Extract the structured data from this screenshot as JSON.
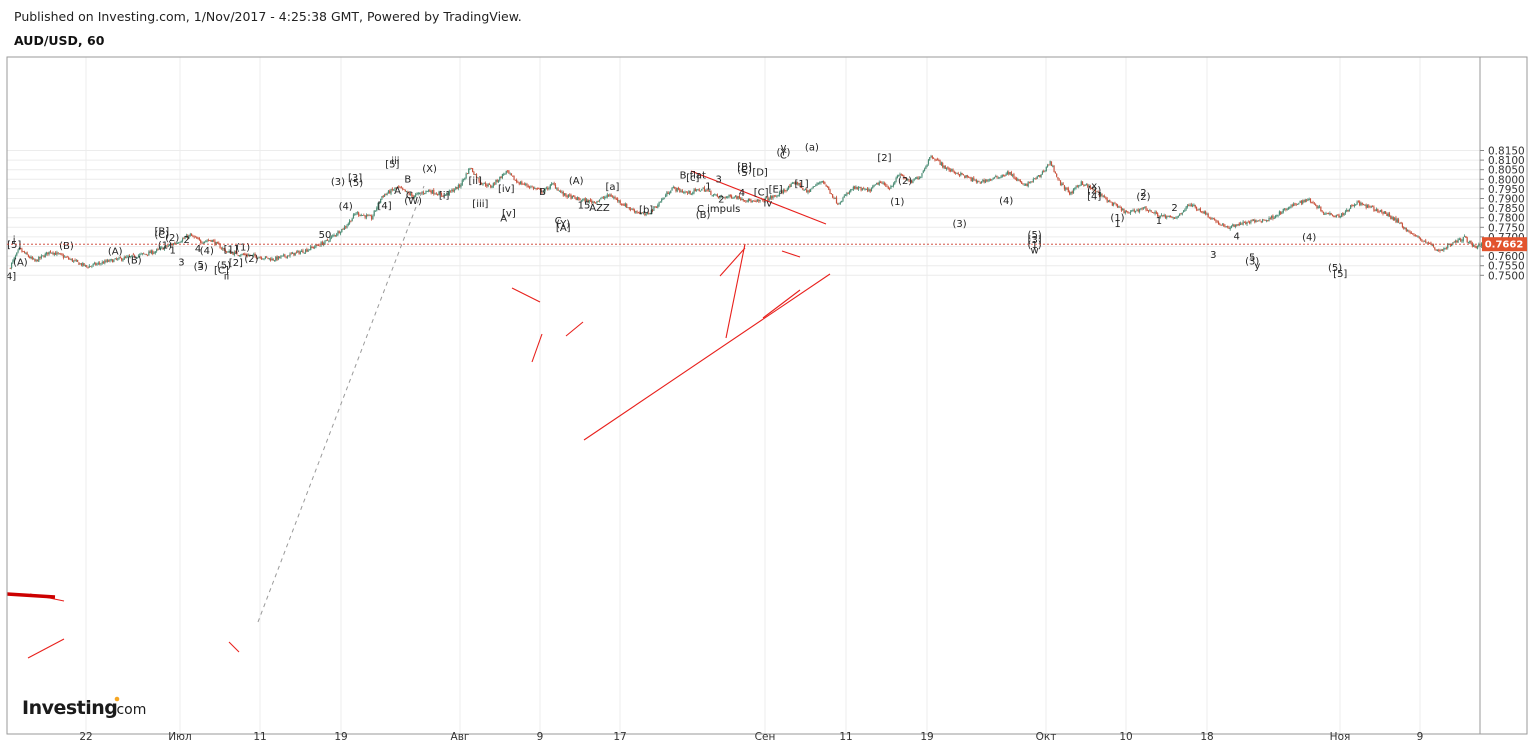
{
  "header": {
    "published": "Published on Investing.com, 1/Nov/2017 - 4:25:38 GMT, Powered by TradingView.",
    "symbol": "AUD/USD, 60"
  },
  "watermark": "Investing.com",
  "colors": {
    "up": "#4a8c74",
    "down": "#c8523c",
    "wave_line": "#e8201c",
    "pivot_line": "#cc0000",
    "magenta": "#e020d0",
    "orange": "#f0a020"
  },
  "chart_data": {
    "type": "candlestick",
    "title": "AUD/USD, 60",
    "y_ticks": [
      "0.8150",
      "0.8100",
      "0.8050",
      "0.8000",
      "0.7950",
      "0.7900",
      "0.7850",
      "0.7800",
      "0.7750",
      "0.7700",
      "0.7650",
      "0.7600",
      "0.7550",
      "0.7500"
    ],
    "ylim": [
      0.7497,
      0.8198
    ],
    "x_ticks": [
      "22",
      "Июл",
      "11",
      "19",
      "Авг",
      "9",
      "17",
      "Сен",
      "11",
      "19",
      "Окт",
      "10",
      "18",
      "Ноя",
      "9"
    ],
    "current_price": "0.7662",
    "price_path": [
      {
        "t": 0,
        "p": 0.7535
      },
      {
        "t": 2,
        "p": 0.7635
      },
      {
        "t": 5,
        "p": 0.7572
      },
      {
        "t": 8,
        "p": 0.7625
      },
      {
        "t": 11,
        "p": 0.7592
      },
      {
        "t": 15,
        "p": 0.7545
      },
      {
        "t": 19,
        "p": 0.7572
      },
      {
        "t": 24,
        "p": 0.7598
      },
      {
        "t": 28,
        "p": 0.7622
      },
      {
        "t": 32,
        "p": 0.7668
      },
      {
        "t": 35,
        "p": 0.7708
      },
      {
        "t": 37,
        "p": 0.7676
      },
      {
        "t": 39,
        "p": 0.7685
      },
      {
        "t": 42,
        "p": 0.7622
      },
      {
        "t": 45,
        "p": 0.7608
      },
      {
        "t": 48,
        "p": 0.7598
      },
      {
        "t": 51,
        "p": 0.7583
      },
      {
        "t": 54,
        "p": 0.7605
      },
      {
        "t": 57,
        "p": 0.7628
      },
      {
        "t": 61,
        "p": 0.7672
      },
      {
        "t": 65,
        "p": 0.7755
      },
      {
        "t": 67,
        "p": 0.7825
      },
      {
        "t": 70,
        "p": 0.7798
      },
      {
        "t": 72,
        "p": 0.7912
      },
      {
        "t": 75,
        "p": 0.7958
      },
      {
        "t": 78,
        "p": 0.7912
      },
      {
        "t": 81,
        "p": 0.7942
      },
      {
        "t": 84,
        "p": 0.7915
      },
      {
        "t": 87,
        "p": 0.7965
      },
      {
        "t": 89,
        "p": 0.8062
      },
      {
        "t": 91,
        "p": 0.7985
      },
      {
        "t": 93,
        "p": 0.7962
      },
      {
        "t": 96,
        "p": 0.804
      },
      {
        "t": 98,
        "p": 0.7988
      },
      {
        "t": 101,
        "p": 0.7958
      },
      {
        "t": 103,
        "p": 0.7935
      },
      {
        "t": 105,
        "p": 0.7975
      },
      {
        "t": 107,
        "p": 0.792
      },
      {
        "t": 110,
        "p": 0.7895
      },
      {
        "t": 113,
        "p": 0.7882
      },
      {
        "t": 116,
        "p": 0.7918
      },
      {
        "t": 120,
        "p": 0.7845
      },
      {
        "t": 123,
        "p": 0.7812
      },
      {
        "t": 125,
        "p": 0.7862
      },
      {
        "t": 128,
        "p": 0.7955
      },
      {
        "t": 131,
        "p": 0.7928
      },
      {
        "t": 134,
        "p": 0.795
      },
      {
        "t": 137,
        "p": 0.7905
      },
      {
        "t": 140,
        "p": 0.7912
      },
      {
        "t": 144,
        "p": 0.788
      },
      {
        "t": 148,
        "p": 0.7912
      },
      {
        "t": 152,
        "p": 0.7985
      },
      {
        "t": 154,
        "p": 0.7932
      },
      {
        "t": 157,
        "p": 0.7995
      },
      {
        "t": 160,
        "p": 0.7875
      },
      {
        "t": 163,
        "p": 0.7955
      },
      {
        "t": 166,
        "p": 0.794
      },
      {
        "t": 168,
        "p": 0.7985
      },
      {
        "t": 170,
        "p": 0.7955
      },
      {
        "t": 172,
        "p": 0.8028
      },
      {
        "t": 174,
        "p": 0.7982
      },
      {
        "t": 176,
        "p": 0.802
      },
      {
        "t": 178,
        "p": 0.8125
      },
      {
        "t": 181,
        "p": 0.8055
      },
      {
        "t": 184,
        "p": 0.8022
      },
      {
        "t": 187,
        "p": 0.7985
      },
      {
        "t": 190,
        "p": 0.8002
      },
      {
        "t": 193,
        "p": 0.8035
      },
      {
        "t": 196,
        "p": 0.7965
      },
      {
        "t": 199,
        "p": 0.8018
      },
      {
        "t": 201,
        "p": 0.809
      },
      {
        "t": 203,
        "p": 0.7975
      },
      {
        "t": 205,
        "p": 0.7925
      },
      {
        "t": 207,
        "p": 0.7985
      },
      {
        "t": 210,
        "p": 0.7932
      },
      {
        "t": 213,
        "p": 0.7872
      },
      {
        "t": 216,
        "p": 0.7822
      },
      {
        "t": 219,
        "p": 0.7852
      },
      {
        "t": 222,
        "p": 0.7812
      },
      {
        "t": 225,
        "p": 0.7795
      },
      {
        "t": 228,
        "p": 0.787
      },
      {
        "t": 230,
        "p": 0.784
      },
      {
        "t": 233,
        "p": 0.7782
      },
      {
        "t": 235,
        "p": 0.7745
      },
      {
        "t": 237,
        "p": 0.7765
      },
      {
        "t": 240,
        "p": 0.778
      },
      {
        "t": 243,
        "p": 0.779
      },
      {
        "t": 246,
        "p": 0.7835
      },
      {
        "t": 249,
        "p": 0.788
      },
      {
        "t": 251,
        "p": 0.7895
      },
      {
        "t": 254,
        "p": 0.7825
      },
      {
        "t": 257,
        "p": 0.781
      },
      {
        "t": 260,
        "p": 0.788
      },
      {
        "t": 263,
        "p": 0.785
      },
      {
        "t": 266,
        "p": 0.7818
      },
      {
        "t": 268,
        "p": 0.7782
      },
      {
        "t": 271,
        "p": 0.771
      },
      {
        "t": 274,
        "p": 0.7668
      },
      {
        "t": 276,
        "p": 0.7625
      },
      {
        "t": 279,
        "p": 0.7672
      },
      {
        "t": 281,
        "p": 0.7695
      },
      {
        "t": 283,
        "p": 0.7648
      },
      {
        "t": 285,
        "p": 0.7662
      }
    ],
    "annotations": [
      {
        "text": "i",
        "t": 1.0,
        "p": 0.7688,
        "c": "k",
        "fs": 12
      },
      {
        "text": "[5]",
        "t": 1.0,
        "p": 0.7663,
        "c": "k"
      },
      {
        "text": "4]",
        "t": 0.4,
        "p": 0.75,
        "c": "k"
      },
      {
        "text": "(A)",
        "t": 2.2,
        "p": 0.7572,
        "c": "k"
      },
      {
        "text": "(B)",
        "t": 11.1,
        "p": 0.7657,
        "c": "k"
      },
      {
        "text": "(A)",
        "t": 20.5,
        "p": 0.763,
        "c": "k"
      },
      {
        "text": "(B)",
        "t": 24.2,
        "p": 0.7583,
        "c": "k"
      },
      {
        "text": "[B]",
        "t": 29.5,
        "p": 0.7733,
        "c": "k"
      },
      {
        "text": "(C)",
        "t": 29.5,
        "p": 0.7715,
        "c": "k"
      },
      {
        "text": "(2)",
        "t": 31.5,
        "p": 0.77,
        "c": "k"
      },
      {
        "text": "2",
        "t": 34.3,
        "p": 0.769,
        "c": "k"
      },
      {
        "text": "(1)",
        "t": 30.1,
        "p": 0.766,
        "c": "k"
      },
      {
        "text": "1",
        "t": 31.6,
        "p": 0.7635,
        "c": "k"
      },
      {
        "text": "3",
        "t": 33.3,
        "p": 0.7573,
        "c": "k"
      },
      {
        "text": "4",
        "t": 36.5,
        "p": 0.7643,
        "c": "k"
      },
      {
        "text": "(4)",
        "t": 38.2,
        "p": 0.7632,
        "c": "k"
      },
      {
        "text": "5",
        "t": 37.0,
        "p": 0.756,
        "c": "k"
      },
      {
        "text": "(3)",
        "t": 37.0,
        "p": 0.7548,
        "c": "k"
      },
      {
        "text": "(5)",
        "t": 41.5,
        "p": 0.7556,
        "c": "k"
      },
      {
        "text": "[1]",
        "t": 42.8,
        "p": 0.764,
        "c": "k"
      },
      {
        "text": "(1)",
        "t": 45.2,
        "p": 0.765,
        "c": "k"
      },
      {
        "text": "[2]",
        "t": 43.8,
        "p": 0.7568,
        "c": "k"
      },
      {
        "text": "(2)",
        "t": 46.8,
        "p": 0.759,
        "c": "k"
      },
      {
        "text": "[C]",
        "t": 41.0,
        "p": 0.7529,
        "c": "k"
      },
      {
        "text": "ii",
        "t": 42.0,
        "p": 0.75,
        "c": "k",
        "fs": 12
      },
      {
        "text": "50",
        "t": 61.0,
        "p": 0.7716,
        "c": "g"
      },
      {
        "text": "(3)",
        "t": 63.5,
        "p": 0.799,
        "c": "k"
      },
      {
        "text": "(5)",
        "t": 67.0,
        "p": 0.7986,
        "c": "k"
      },
      {
        "text": "[3]",
        "t": 66.8,
        "p": 0.8011,
        "c": "k"
      },
      {
        "text": "(4)",
        "t": 65.0,
        "p": 0.7863,
        "c": "k"
      },
      {
        "text": "iii",
        "t": 74.6,
        "p": 0.81,
        "c": "k",
        "fs": 12
      },
      {
        "text": "[5]",
        "t": 74.0,
        "p": 0.8082,
        "c": "k"
      },
      {
        "text": "[4]",
        "t": 72.5,
        "p": 0.7866,
        "c": "k"
      },
      {
        "text": "(X)",
        "t": 81.2,
        "p": 0.806,
        "c": "k"
      },
      {
        "text": "B",
        "t": 77.0,
        "p": 0.8005,
        "c": "k"
      },
      {
        "text": "A",
        "t": 75.0,
        "p": 0.7944,
        "c": "k"
      },
      {
        "text": "C",
        "t": 77.3,
        "p": 0.7921,
        "c": "k"
      },
      {
        "text": "(W)",
        "t": 78.0,
        "p": 0.7892,
        "c": "k"
      },
      {
        "text": "[ii]",
        "t": 90.0,
        "p": 0.7996,
        "c": "k"
      },
      {
        "text": "[i]",
        "t": 84.0,
        "p": 0.7921,
        "c": "k"
      },
      {
        "text": "[iv]",
        "t": 96.0,
        "p": 0.7955,
        "c": "k"
      },
      {
        "text": "[iii]",
        "t": 91.0,
        "p": 0.7876,
        "c": "k"
      },
      {
        "text": "[v]",
        "t": 96.5,
        "p": 0.7826,
        "c": "k"
      },
      {
        "text": "A",
        "t": 95.5,
        "p": 0.78,
        "c": "k"
      },
      {
        "text": "B",
        "t": 103.0,
        "p": 0.7938,
        "c": "k"
      },
      {
        "text": "C",
        "t": 106.0,
        "p": 0.7787,
        "c": "k"
      },
      {
        "text": "(Y)",
        "t": 107.0,
        "p": 0.7773,
        "c": "k"
      },
      {
        "text": "[A]",
        "t": 107.0,
        "p": 0.7752,
        "c": "k"
      },
      {
        "text": "(A)",
        "t": 109.5,
        "p": 0.7996,
        "c": "k"
      },
      {
        "text": "15",
        "t": 111.0,
        "p": 0.787,
        "c": "g"
      },
      {
        "text": "AZZ",
        "t": 114.0,
        "p": 0.7857,
        "c": "k"
      },
      {
        "text": "[a]",
        "t": 116.5,
        "p": 0.7966,
        "c": "k"
      },
      {
        "text": "[b]",
        "t": 123.0,
        "p": 0.7846,
        "c": "k"
      },
      {
        "text": "B flat",
        "t": 132.0,
        "p": 0.8025,
        "c": "k"
      },
      {
        "text": "[c]",
        "t": 132.0,
        "p": 0.8011,
        "c": "k"
      },
      {
        "text": "1",
        "t": 135.0,
        "p": 0.7968,
        "c": "k"
      },
      {
        "text": "3",
        "t": 137.0,
        "p": 0.8005,
        "c": "k"
      },
      {
        "text": "2",
        "t": 137.5,
        "p": 0.79,
        "c": "k"
      },
      {
        "text": "4",
        "t": 141.5,
        "p": 0.7933,
        "c": "k"
      },
      {
        "text": "C impuls",
        "t": 137.0,
        "p": 0.785,
        "c": "k"
      },
      {
        "text": "(B)",
        "t": 134.0,
        "p": 0.7819,
        "c": "k"
      },
      {
        "text": "[B]",
        "t": 142.0,
        "p": 0.8068,
        "c": "k"
      },
      {
        "text": "(C)",
        "t": 142.0,
        "p": 0.8054,
        "c": "k"
      },
      {
        "text": "5",
        "t": 142.0,
        "p": 0.8037,
        "c": "k"
      },
      {
        "text": "[D]",
        "t": 145.0,
        "p": 0.804,
        "c": "k"
      },
      {
        "text": "[E]",
        "t": 148.0,
        "p": 0.7953,
        "c": "k"
      },
      {
        "text": "[C]",
        "t": 145.2,
        "p": 0.7937,
        "c": "k"
      },
      {
        "text": "iv",
        "t": 146.5,
        "p": 0.788,
        "c": "k",
        "fs": 12
      },
      {
        "text": "v",
        "t": 149.5,
        "p": 0.817,
        "c": "k",
        "fs": 14
      },
      {
        "text": "(a)",
        "t": 155.0,
        "p": 0.817,
        "c": "k",
        "fs": 14
      },
      {
        "text": "(Y)",
        "t": 149.5,
        "p": 0.8144,
        "c": "k"
      },
      {
        "text": "C",
        "t": 149.5,
        "p": 0.813,
        "c": "k"
      },
      {
        "text": "[1]",
        "t": 153.0,
        "p": 0.798,
        "c": "k"
      },
      {
        "text": "[2]",
        "t": 169.0,
        "p": 0.8116,
        "c": "k"
      },
      {
        "text": "(2)",
        "t": 173.0,
        "p": 0.7996,
        "c": "k"
      },
      {
        "text": "(1)",
        "t": 171.5,
        "p": 0.7888,
        "c": "k"
      },
      {
        "text": "(3)",
        "t": 183.5,
        "p": 0.7772,
        "c": "k"
      },
      {
        "text": "(4)",
        "t": 192.5,
        "p": 0.7893,
        "c": "k"
      },
      {
        "text": "(5)",
        "t": 198.0,
        "p": 0.7716,
        "c": "k"
      },
      {
        "text": "[3]",
        "t": 198.0,
        "p": 0.7689,
        "c": "k"
      },
      {
        "text": "(1)",
        "t": 198.0,
        "p": 0.7662,
        "c": "o"
      },
      {
        "text": "w",
        "t": 198.0,
        "p": 0.7634,
        "c": "m",
        "fs": 12
      },
      {
        "text": "x",
        "t": 209.5,
        "p": 0.797,
        "c": "m",
        "fs": 12
      },
      {
        "text": "(2)",
        "t": 209.5,
        "p": 0.7946,
        "c": "o"
      },
      {
        "text": "[4]",
        "t": 209.5,
        "p": 0.7916,
        "c": "k"
      },
      {
        "text": "2",
        "t": 219.0,
        "p": 0.7935,
        "c": "o",
        "fs": 11
      },
      {
        "text": "(2)",
        "t": 219.0,
        "p": 0.7914,
        "c": "k"
      },
      {
        "text": "(1)",
        "t": 214.0,
        "p": 0.7803,
        "c": "k"
      },
      {
        "text": "1",
        "t": 214.0,
        "p": 0.7773,
        "c": "o",
        "fs": 11
      },
      {
        "text": "2",
        "t": 225.0,
        "p": 0.7857,
        "c": "k",
        "fs": 11
      },
      {
        "text": "1",
        "t": 222.0,
        "p": 0.7787,
        "c": "k",
        "fs": 11
      },
      {
        "text": "3",
        "t": 232.5,
        "p": 0.761,
        "c": "k",
        "fs": 11
      },
      {
        "text": "4",
        "t": 237.0,
        "p": 0.7707,
        "c": "k",
        "fs": 11
      },
      {
        "text": "5",
        "t": 240.0,
        "p": 0.7597,
        "c": "k",
        "fs": 11
      },
      {
        "text": "(3)",
        "t": 240.0,
        "p": 0.7578,
        "c": "k"
      },
      {
        "text": "y",
        "t": 241.0,
        "p": 0.7553,
        "c": "m",
        "fs": 12
      },
      {
        "text": "(4)",
        "t": 251.0,
        "p": 0.7701,
        "c": "k"
      },
      {
        "text": "(5)",
        "t": 256.0,
        "p": 0.7542,
        "c": "k"
      },
      {
        "text": "[5]",
        "t": 257.0,
        "p": 0.7511,
        "c": "k"
      }
    ]
  }
}
